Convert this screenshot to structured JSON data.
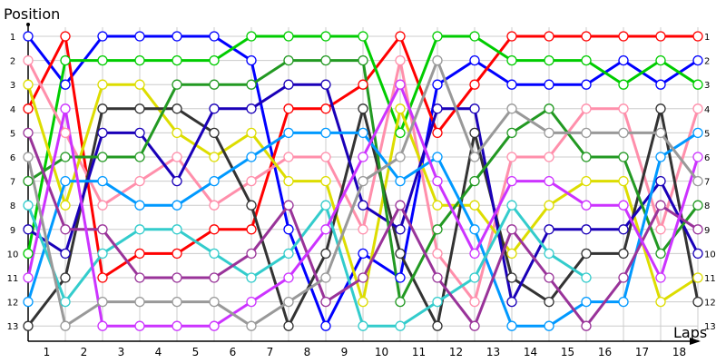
{
  "chart_data": {
    "type": "line",
    "title": "",
    "ylabel": "Position",
    "xlabel": "Laps",
    "x_tick_labels": [
      "1",
      "2",
      "3",
      "4",
      "5",
      "6",
      "7",
      "8",
      "9",
      "10",
      "11",
      "12",
      "13",
      "14",
      "15",
      "16",
      "17",
      "18"
    ],
    "y_tick_labels": [
      "1",
      "2",
      "3",
      "4",
      "5",
      "6",
      "7",
      "8",
      "9",
      "10",
      "11",
      "12",
      "13"
    ],
    "ylim": [
      1,
      13
    ],
    "y_inverted": true,
    "grid": true,
    "x": [
      0,
      1,
      2,
      3,
      4,
      5,
      6,
      7,
      8,
      9,
      10,
      11,
      12,
      13,
      14,
      15,
      16,
      17,
      18
    ],
    "series": [
      {
        "color": "#0000ff",
        "values": [
          1,
          3,
          1,
          1,
          1,
          1,
          2,
          9,
          13,
          10,
          11,
          3,
          2,
          3,
          3,
          3,
          2,
          3,
          2
        ]
      },
      {
        "color": "#ff0000",
        "values": [
          4,
          1,
          11,
          10,
          10,
          9,
          9,
          4,
          4,
          3,
          1,
          5,
          3,
          1,
          1,
          1,
          1,
          1,
          1
        ]
      },
      {
        "color": "#00cc00",
        "values": [
          10,
          2,
          2,
          2,
          2,
          2,
          1,
          1,
          1,
          1,
          5,
          1,
          1,
          2,
          2,
          2,
          3,
          2,
          3
        ]
      },
      {
        "color": "#ff8fab",
        "values": [
          2,
          5,
          8,
          7,
          6,
          8,
          7,
          6,
          6,
          9,
          2,
          10,
          12,
          6,
          6,
          4,
          4,
          9,
          4
        ]
      },
      {
        "color": "#dddd00",
        "values": [
          3,
          8,
          3,
          3,
          5,
          6,
          5,
          7,
          7,
          12,
          4,
          8,
          8,
          10,
          8,
          7,
          7,
          12,
          11
        ]
      },
      {
        "color": "#333333",
        "values": [
          13,
          11,
          4,
          4,
          4,
          5,
          8,
          13,
          10,
          4,
          10,
          13,
          5,
          11,
          12,
          10,
          10,
          4,
          12
        ]
      },
      {
        "color": "#1a00b8",
        "values": [
          9,
          10,
          5,
          5,
          7,
          4,
          4,
          3,
          3,
          8,
          9,
          4,
          4,
          12,
          9,
          9,
          9,
          7,
          10
        ]
      },
      {
        "color": "#229922",
        "values": [
          7,
          6,
          6,
          6,
          3,
          3,
          3,
          2,
          2,
          2,
          12,
          9,
          7,
          5,
          4,
          6,
          6,
          10,
          8
        ]
      },
      {
        "color": "#0099ff",
        "values": [
          12,
          7,
          7,
          8,
          8,
          7,
          6,
          5,
          5,
          5,
          7,
          6,
          9,
          13,
          13,
          12,
          12,
          6,
          5
        ]
      },
      {
        "color": "#33cccc",
        "values": [
          8,
          12,
          10,
          9,
          9,
          10,
          11,
          10,
          8,
          13,
          13,
          12,
          11,
          8,
          10,
          11,
          null,
          null,
          null
        ]
      },
      {
        "color": "#993399",
        "values": [
          5,
          9,
          9,
          11,
          11,
          11,
          10,
          8,
          12,
          11,
          8,
          11,
          13,
          9,
          11,
          13,
          11,
          8,
          9
        ]
      },
      {
        "color": "#cc33ff",
        "values": [
          11,
          4,
          13,
          13,
          13,
          13,
          12,
          11,
          9,
          6,
          3,
          7,
          10,
          7,
          7,
          8,
          8,
          11,
          6
        ]
      },
      {
        "color": "#999999",
        "values": [
          6,
          13,
          12,
          12,
          12,
          12,
          13,
          12,
          11,
          7,
          6,
          2,
          6,
          4,
          5,
          5,
          5,
          5,
          7
        ]
      }
    ]
  }
}
